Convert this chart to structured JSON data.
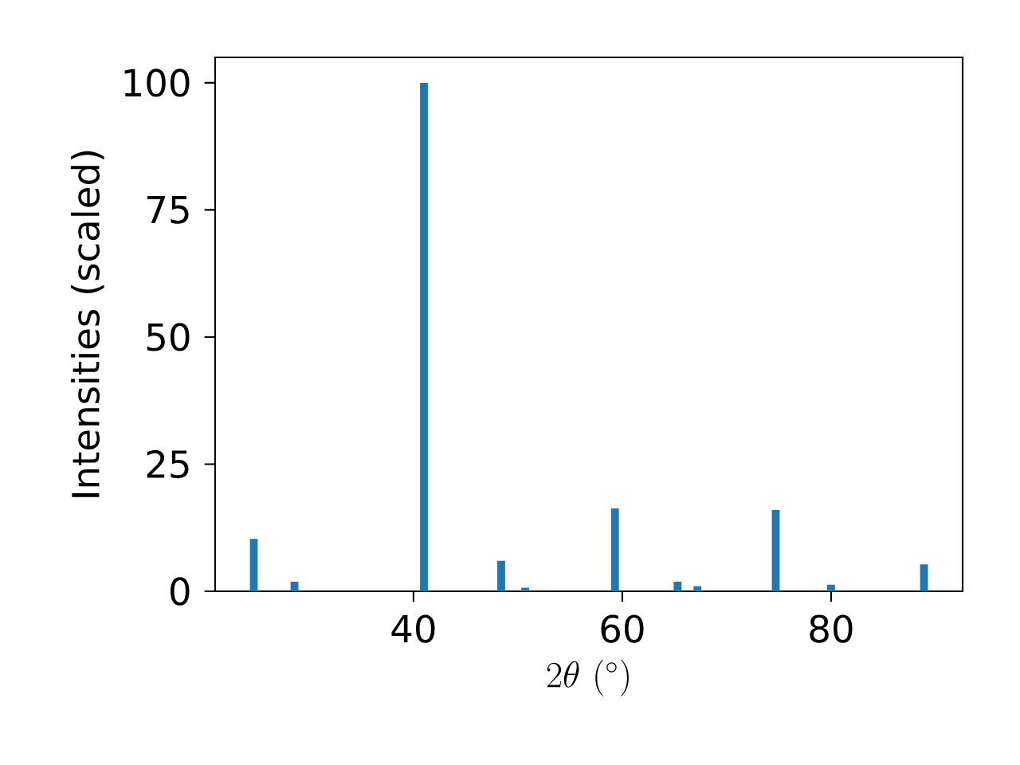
{
  "chart_data": {
    "type": "bar",
    "xlabel": "2\\theta\\ (^{\\circ})",
    "ylabel": "Intensities (scaled)",
    "x": [
      24.7,
      28.6,
      41.0,
      48.4,
      50.7,
      59.3,
      65.3,
      67.2,
      74.7,
      80.0,
      88.9
    ],
    "values": [
      10.3,
      1.9,
      100,
      6.0,
      0.7,
      16.3,
      1.9,
      1.0,
      16.0,
      1.3,
      5.3
    ],
    "color": "#1f77b4",
    "xlim": [
      21.0,
      92.6
    ],
    "xticks": [
      40,
      60,
      80
    ],
    "ylim": [
      0,
      105
    ],
    "yticks": [
      0,
      25,
      50,
      75,
      100
    ]
  }
}
